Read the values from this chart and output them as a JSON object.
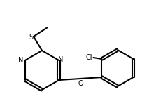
{
  "background_color": "#ffffff",
  "line_color": "#000000",
  "line_width": 1.5,
  "font_size": 7,
  "atoms": {
    "N_label": "N",
    "O_label": "O",
    "S_label": "S",
    "Cl_label": "Cl"
  },
  "figsize": [
    2.2,
    1.51
  ],
  "dpi": 100
}
